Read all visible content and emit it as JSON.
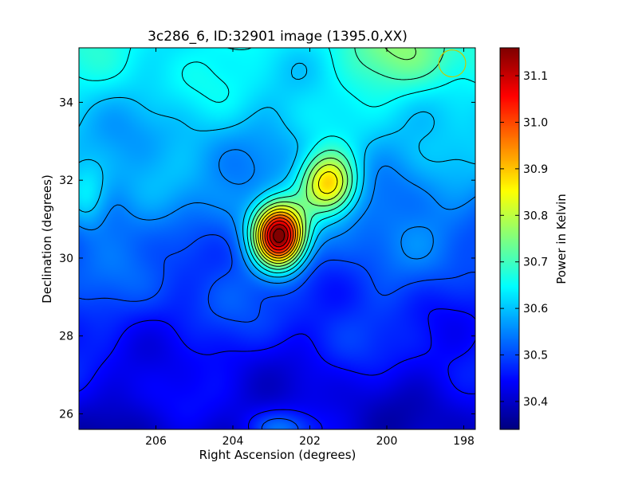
{
  "chart_data": {
    "type": "heatmap",
    "title": "3c286_6, ID:32901 image (1395.0,XX)",
    "xlabel": "Right Ascension (degrees)",
    "ylabel": "Declination (degrees)",
    "colorbar_label": "Power in Kelvin",
    "xlim": [
      208.0,
      197.7
    ],
    "ylim": [
      25.6,
      35.4
    ],
    "xticks": [
      {
        "value": 206,
        "label": "206"
      },
      {
        "value": 204,
        "label": "204"
      },
      {
        "value": 202,
        "label": "202"
      },
      {
        "value": 200,
        "label": "200"
      },
      {
        "value": 198,
        "label": "198"
      }
    ],
    "yticks": [
      {
        "value": 26,
        "label": "26"
      },
      {
        "value": 28,
        "label": "28"
      },
      {
        "value": 30,
        "label": "30"
      },
      {
        "value": 32,
        "label": "32"
      },
      {
        "value": 34,
        "label": "34"
      }
    ],
    "colorbar_range": [
      30.34,
      31.16
    ],
    "colorbar_ticks": [
      {
        "value": 30.4,
        "label": "30.4"
      },
      {
        "value": 30.5,
        "label": "30.5"
      },
      {
        "value": 30.6,
        "label": "30.6"
      },
      {
        "value": 30.7,
        "label": "30.7"
      },
      {
        "value": 30.8,
        "label": "30.8"
      },
      {
        "value": 30.9,
        "label": "30.9"
      },
      {
        "value": 31.0,
        "label": "31.0"
      },
      {
        "value": 31.1,
        "label": "31.1"
      }
    ],
    "colormap": "jet",
    "background": 30.5,
    "gradient": {
      "north_level": 30.65,
      "south_level": 30.4
    },
    "sources": [
      {
        "name": "main-peak",
        "ra": 202.8,
        "dec": 30.55,
        "amplitude": 0.63,
        "sigma_ra": 0.45,
        "sigma_dec": 0.55
      },
      {
        "name": "secondary-peak",
        "ra": 201.5,
        "dec": 31.9,
        "amplitude": 0.33,
        "sigma_ra": 0.5,
        "sigma_dec": 0.55
      },
      {
        "name": "south-blob",
        "ra": 202.8,
        "dec": 25.6,
        "amplitude": 0.12,
        "sigma_ra": 0.6,
        "sigma_dec": 0.35
      },
      {
        "name": "west-edge-blob",
        "ra": 207.8,
        "dec": 31.5,
        "amplitude": 0.1,
        "sigma_ra": 0.4,
        "sigma_dec": 0.6
      },
      {
        "name": "north-plume",
        "ra": 199.5,
        "dec": 35.0,
        "amplitude": 0.1,
        "sigma_ra": 1.0,
        "sigma_dec": 0.8
      }
    ],
    "beam_marker": {
      "ra": 198.3,
      "dec": 35.0,
      "radius": 0.35,
      "color": "#c8c800"
    }
  }
}
